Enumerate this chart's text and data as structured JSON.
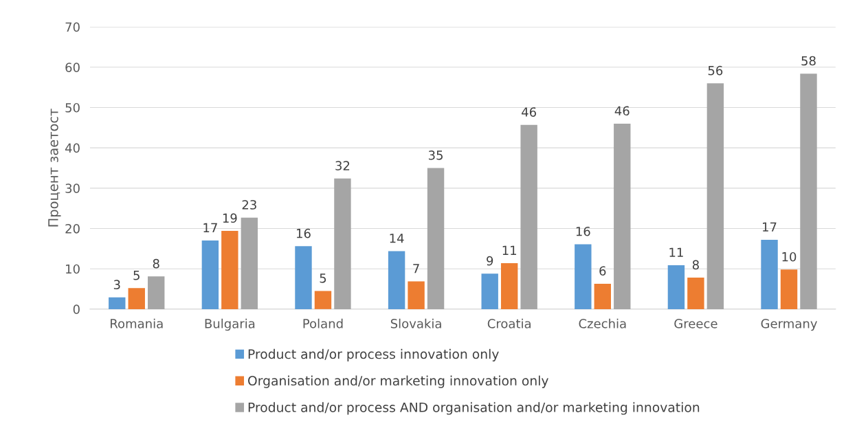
{
  "chart_data": {
    "type": "bar",
    "ylabel": "Процент заетост",
    "categories": [
      "Romania",
      "Bulgaria",
      "Poland",
      "Slovakia",
      "Croatia",
      "Czechia",
      "Greece",
      "Germany"
    ],
    "series": [
      {
        "name": "Product and/or process innovation only",
        "color": "#5b9bd5",
        "values": [
          2.9,
          17.0,
          15.6,
          14.4,
          8.8,
          16.1,
          10.9,
          17.2
        ],
        "value_labels": [
          "3",
          "17",
          "16",
          "14",
          "9",
          "16",
          "11",
          "17"
        ]
      },
      {
        "name": "Organisation and/or marketing innovation only",
        "color": "#ed7d31",
        "values": [
          5.2,
          19.4,
          4.5,
          6.9,
          11.4,
          6.3,
          7.8,
          9.8
        ],
        "value_labels": [
          "5",
          "19",
          "5",
          "7",
          "11",
          "6",
          "8",
          "10"
        ]
      },
      {
        "name": "Product and/or process AND organisation and/or marketing innovation",
        "color": "#a5a5a5",
        "values": [
          8.1,
          22.7,
          32.4,
          35.0,
          45.7,
          46.0,
          56.0,
          58.4
        ],
        "value_labels": [
          "8",
          "23",
          "32",
          "35",
          "46",
          "46",
          "56",
          "58"
        ]
      }
    ],
    "ylim": [
      0,
      70
    ],
    "yticks": [
      0,
      10,
      20,
      30,
      40,
      50,
      60,
      70
    ],
    "grid": "y",
    "legend": "bottom"
  }
}
